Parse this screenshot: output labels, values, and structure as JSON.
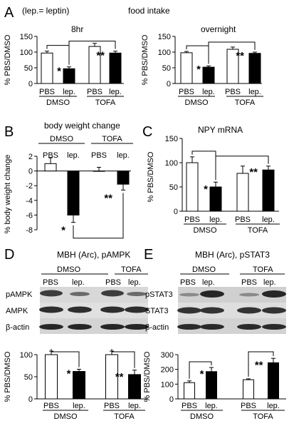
{
  "figure": {
    "panel_letters": [
      "A",
      "B",
      "C",
      "D",
      "E"
    ],
    "note": "(lep.= leptin)",
    "panel_a_title": "food intake"
  },
  "chart_data": [
    {
      "id": "A1",
      "type": "bar",
      "title": "8hr",
      "ylabel": "% PBS/DMSO",
      "ylim": [
        0,
        150
      ],
      "yticks": [
        0,
        50,
        100,
        150
      ],
      "categories": [
        "PBS",
        "lep.",
        "PBS",
        "lep."
      ],
      "groups": [
        "DMSO",
        "TOFA"
      ],
      "values": [
        97,
        47,
        118,
        97
      ],
      "errors": [
        6,
        6,
        10,
        6
      ],
      "fills": [
        "#ffffff",
        "#000000",
        "#ffffff",
        "#000000"
      ],
      "stars": [
        "",
        "*",
        "",
        "**"
      ],
      "comparisons": [
        [
          0,
          1
        ],
        [
          1,
          3
        ]
      ]
    },
    {
      "id": "A2",
      "type": "bar",
      "title": "overnight",
      "ylabel": "% PBS/DMSO",
      "ylim": [
        0,
        150
      ],
      "yticks": [
        0,
        50,
        100,
        150
      ],
      "categories": [
        "PBS",
        "lep.",
        "PBS",
        "lep."
      ],
      "groups": [
        "DMSO",
        "TOFA"
      ],
      "values": [
        98,
        52,
        109,
        96
      ],
      "errors": [
        4,
        4,
        7,
        4
      ],
      "fills": [
        "#ffffff",
        "#000000",
        "#ffffff",
        "#000000"
      ],
      "stars": [
        "",
        "*",
        "",
        "**"
      ],
      "comparisons": [
        [
          0,
          1
        ],
        [
          1,
          3
        ]
      ]
    },
    {
      "id": "B",
      "type": "bar",
      "title": "body weight change",
      "ylabel": "% body weight change",
      "ylim": [
        -8,
        2
      ],
      "yticks": [
        2,
        0,
        -2,
        -4,
        -6,
        -8
      ],
      "categories": [
        "PBS",
        "lep.",
        "PBS",
        "lep."
      ],
      "groups": [
        "DMSO",
        "TOFA"
      ],
      "values": [
        1.0,
        -6.0,
        0.0,
        -1.8
      ],
      "errors": [
        0.8,
        1.0,
        0.5,
        0.8
      ],
      "fills": [
        "#ffffff",
        "#000000",
        "#ffffff",
        "#000000"
      ],
      "stars": [
        "",
        "*",
        "",
        "**"
      ],
      "comparisons": [
        [
          1,
          3
        ]
      ]
    },
    {
      "id": "C",
      "type": "bar",
      "title": "NPY mRNA",
      "ylabel": "% PBS/DMSO",
      "ylim": [
        0,
        150
      ],
      "yticks": [
        0,
        50,
        100,
        150
      ],
      "categories": [
        "PBS",
        "lep.",
        "PBS",
        "lep."
      ],
      "groups": [
        "DMSO",
        "TOFA"
      ],
      "values": [
        100,
        50,
        78,
        85
      ],
      "errors": [
        12,
        10,
        15,
        8
      ],
      "fills": [
        "#ffffff",
        "#000000",
        "#ffffff",
        "#000000"
      ],
      "stars": [
        "",
        "*",
        "",
        "**"
      ],
      "comparisons": [
        [
          0,
          1
        ],
        [
          1,
          3
        ]
      ]
    },
    {
      "id": "D",
      "type": "bar",
      "title": "MBH (Arc), pAMPK",
      "ylabel": "% PBS/DMSO",
      "ylim": [
        0,
        100
      ],
      "yticks": [
        0,
        50,
        100
      ],
      "categories": [
        "PBS",
        "lep.",
        "PBS",
        "lep."
      ],
      "groups": [
        "DMSO",
        "TOFA"
      ],
      "values": [
        100,
        62,
        100,
        55
      ],
      "errors": [
        8,
        5,
        8,
        10
      ],
      "fills": [
        "#ffffff",
        "#000000",
        "#ffffff",
        "#000000"
      ],
      "stars": [
        "",
        "*",
        "",
        "**"
      ],
      "comparisons": [
        [
          0,
          1
        ],
        [
          2,
          3
        ]
      ]
    },
    {
      "id": "E",
      "type": "bar",
      "title": "MBH (Arc), pSTAT3",
      "ylabel": "% PBS/DMSO",
      "ylim": [
        0,
        300
      ],
      "yticks": [
        0,
        100,
        200,
        300
      ],
      "categories": [
        "PBS",
        "lep.",
        "PBS",
        "lep."
      ],
      "groups": [
        "DMSO",
        "TOFA"
      ],
      "values": [
        110,
        185,
        130,
        245
      ],
      "errors": [
        12,
        28,
        6,
        30
      ],
      "fills": [
        "#ffffff",
        "#000000",
        "#ffffff",
        "#000000"
      ],
      "stars": [
        "",
        "*",
        "",
        "**"
      ],
      "comparisons": [
        [
          0,
          1
        ],
        [
          2,
          3
        ]
      ]
    }
  ],
  "blots": {
    "D": {
      "lanes": [
        "PBS",
        "lep.",
        "PBS",
        "lep."
      ],
      "groups": [
        "DMSO",
        "TOFA"
      ],
      "rows": [
        "pAMPK",
        "AMPK",
        "β-actin"
      ]
    },
    "E": {
      "lanes": [
        "PBS",
        "lep.",
        "PBS",
        "lep."
      ],
      "groups": [
        "DMSO",
        "TOFA"
      ],
      "rows": [
        "pSTAT3",
        "STAT3",
        "β-actin"
      ]
    }
  }
}
